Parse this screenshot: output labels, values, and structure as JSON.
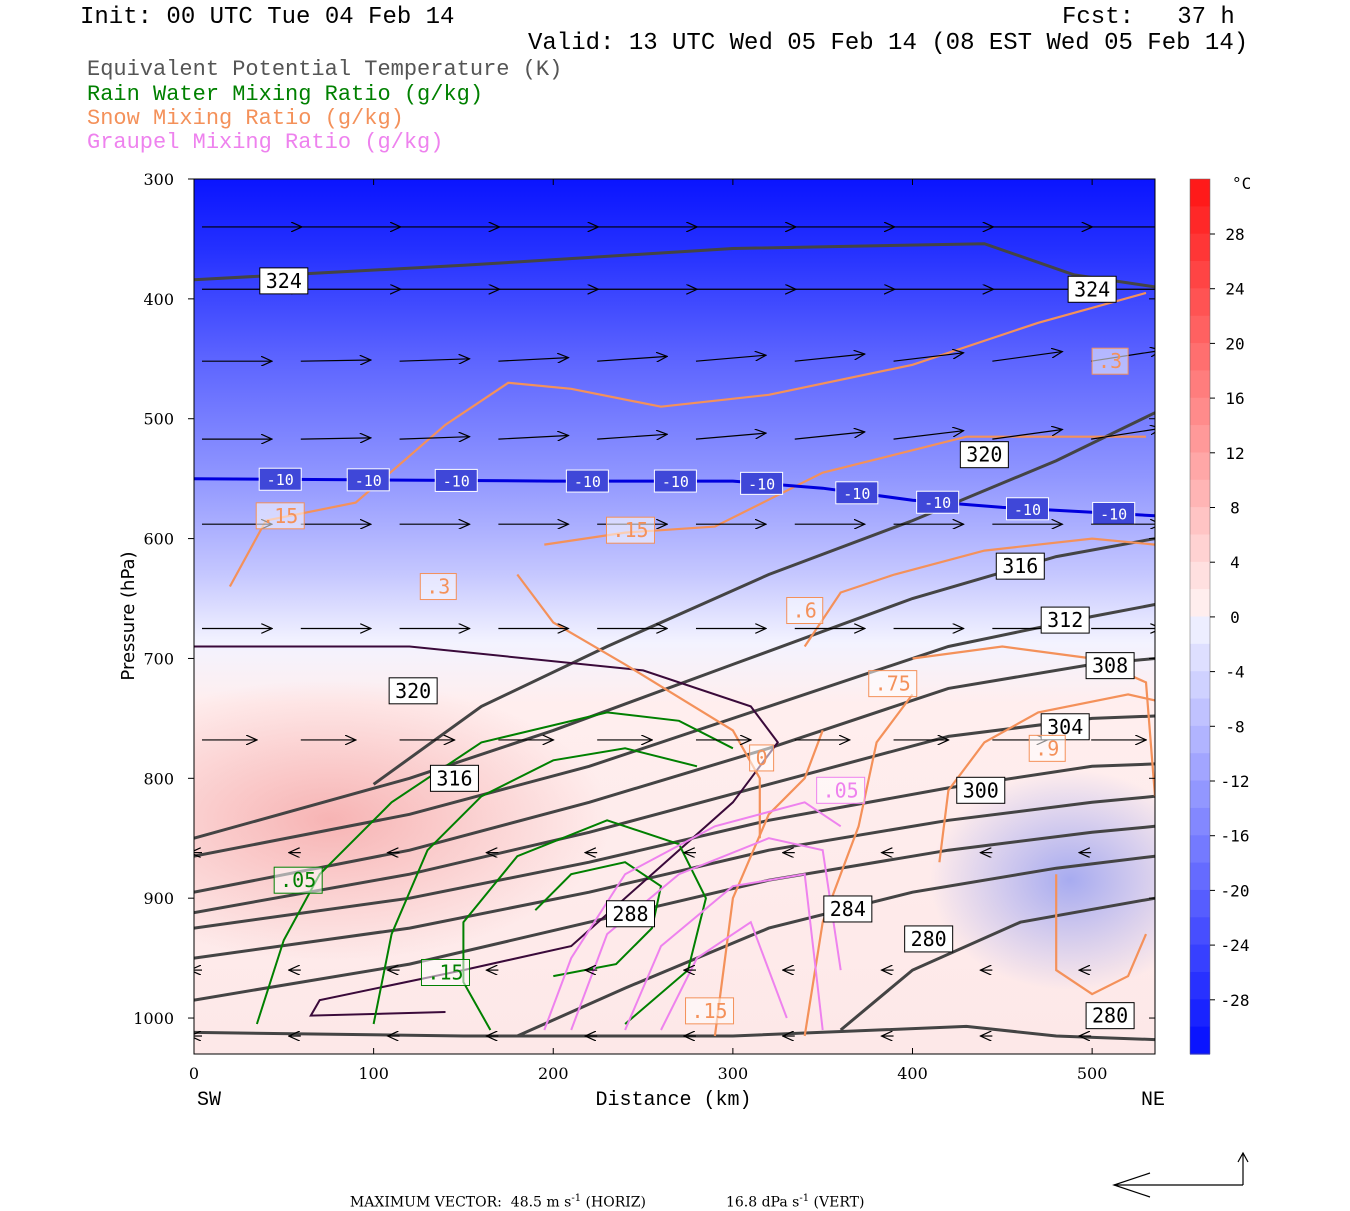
{
  "header": {
    "init": "Init: 00 UTC Tue 04 Feb 14",
    "fcst": "Fcst:   37 h",
    "valid": "Valid: 13 UTC Wed 05 Feb 14 (08 EST Wed 05 Feb 14)"
  },
  "legend": [
    {
      "label": "Equivalent Potential Temperature (K)",
      "color": "#555555"
    },
    {
      "label": "Rain Water Mixing Ratio (g/kg)",
      "color": "#008000"
    },
    {
      "label": "Snow Mixing Ratio (g/kg)",
      "color": "#f4915a"
    },
    {
      "label": "Graupel Mixing Ratio (g/kg)",
      "color": "#ee82ee"
    }
  ],
  "footer": {
    "prefix": "MAXIMUM VECTOR:",
    "horiz_value": "48.5 m s",
    "horiz_exp": "-1",
    "horiz_tag": "(HORIZ)",
    "vert_value": "16.8 dPa s",
    "vert_exp": "-1",
    "vert_tag": "(VERT)"
  },
  "chart_data": {
    "type": "contour",
    "xlabel": "Distance (km)",
    "ylabel": "Pressure (hPa)",
    "xlim": [
      0,
      535
    ],
    "ylim": [
      1030,
      300
    ],
    "x_ticks": [
      "0",
      "100",
      "200",
      "300",
      "400",
      "500"
    ],
    "y_ticks": [
      "300",
      "400",
      "500",
      "600",
      "700",
      "800",
      "900",
      "1000"
    ],
    "x_end_labels": {
      "left": "SW",
      "right": "NE"
    },
    "colorbar": {
      "unit": "°C",
      "ticks": [
        "28",
        "24",
        "20",
        "16",
        "12",
        "8",
        "4",
        "0",
        "-4",
        "-8",
        "-12",
        "-16",
        "-20",
        "-24",
        "-28"
      ],
      "warm_color": "#ff1a1a",
      "cold_color": "#0a14ff"
    },
    "theta_e_labels": [
      {
        "text": "324",
        "x": 50,
        "p": 385
      },
      {
        "text": "324",
        "x": 500,
        "p": 392
      },
      {
        "text": "320",
        "x": 440,
        "p": 530
      },
      {
        "text": "316",
        "x": 460,
        "p": 623
      },
      {
        "text": "312",
        "x": 485,
        "p": 668
      },
      {
        "text": "308",
        "x": 510,
        "p": 706
      },
      {
        "text": "304",
        "x": 485,
        "p": 757
      },
      {
        "text": "320",
        "x": 122,
        "p": 727
      },
      {
        "text": "316",
        "x": 145,
        "p": 800
      },
      {
        "text": "300",
        "x": 438,
        "p": 810
      },
      {
        "text": "288",
        "x": 243,
        "p": 913
      },
      {
        "text": "284",
        "x": 364,
        "p": 909
      },
      {
        "text": "280",
        "x": 409,
        "p": 934
      },
      {
        "text": "280",
        "x": 510,
        "p": 998
      }
    ],
    "isotherm_minus10": {
      "label": "-10",
      "x": [
        0,
        100,
        200,
        300,
        350,
        400,
        450,
        500,
        535
      ],
      "p": [
        550,
        551,
        552,
        552,
        558,
        568,
        574,
        578,
        581
      ],
      "label_x": [
        48,
        97,
        146,
        219,
        268,
        316,
        369,
        414,
        464,
        512
      ]
    },
    "snow_labels": [
      {
        "text": ".15",
        "x": 48,
        "p": 581
      },
      {
        "text": ".15",
        "x": 243,
        "p": 593
      },
      {
        "text": ".3",
        "x": 136,
        "p": 640
      },
      {
        "text": ".3",
        "x": 510,
        "p": 452
      },
      {
        "text": ".6",
        "x": 340,
        "p": 660
      },
      {
        "text": ".75",
        "x": 389,
        "p": 721
      },
      {
        "text": ".9",
        "x": 475,
        "p": 775
      },
      {
        "text": "0",
        "x": 316,
        "p": 783
      },
      {
        "text": ".15",
        "x": 287,
        "p": 994
      }
    ],
    "rain_labels": [
      {
        "text": ".05",
        "x": 58,
        "p": 885
      },
      {
        "text": ".15",
        "x": 140,
        "p": 962
      }
    ],
    "graupel_labels": [
      {
        "text": ".05",
        "x": 360,
        "p": 810
      }
    ]
  }
}
